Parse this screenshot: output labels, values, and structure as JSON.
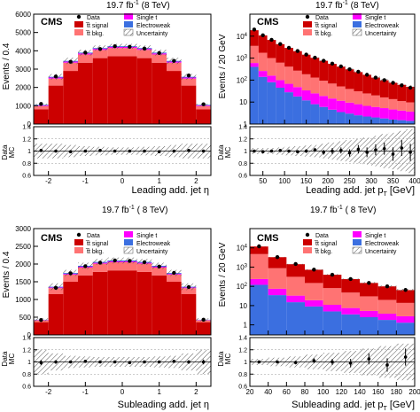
{
  "panels": [
    {
      "lumi_text": "19.7 fb",
      "lumi_sup": "-1",
      "energy_text": "(8 TeV)",
      "cms_label": "CMS",
      "ylabel": "Events / 0.4",
      "ratio_ylabel_top": "Data",
      "ratio_ylabel_bottom": "MC",
      "xlabel": "Leading add. jet η",
      "legend": [
        "Data",
        "t̅t signal",
        "t̅t bkg.",
        "Single t",
        "Electroweak",
        "Uncertainty"
      ]
    },
    {
      "lumi_text": "19.7 fb",
      "lumi_sup": "-1",
      "energy_text": "(8 TeV)",
      "cms_label": "CMS",
      "ylabel": "Events / 20 GeV",
      "ratio_ylabel_top": "Data",
      "ratio_ylabel_bottom": "MC",
      "xlabel": "Leading add. jet p",
      "xlabel_sub": "T",
      "xlabel_unit": "[GeV]",
      "legend": [
        "Data",
        "t̅t signal",
        "t̅t bkg.",
        "Single t",
        "Electroweak",
        "Uncertainty"
      ]
    },
    {
      "lumi_text": "19.7 fb",
      "lumi_sup": "-1",
      "energy_text": "( 8 TeV)",
      "cms_label": "CMS",
      "ylabel": "Events / 0.4",
      "ratio_ylabel_top": "Data",
      "ratio_ylabel_bottom": "MC",
      "xlabel": "Subleading add. jet η",
      "legend": [
        "Data",
        "t̅t signal",
        "t̅t bkg.",
        "Single t",
        "Electroweak",
        "Uncertainty"
      ]
    },
    {
      "lumi_text": "19.7 fb",
      "lumi_sup": "-1",
      "energy_text": "( 8 TeV)",
      "cms_label": "CMS",
      "ylabel": "Events / 20 GeV",
      "ratio_ylabel_top": "Data",
      "ratio_ylabel_bottom": "MC",
      "xlabel": "Subleading add. jet p",
      "xlabel_sub": "T",
      "xlabel_unit": "[GeV]",
      "legend": [
        "Data",
        "t̅t signal",
        "t̅t bkg.",
        "Single t",
        "Electroweak",
        "Uncertainty"
      ]
    }
  ],
  "colors": {
    "signal": "#cc0000",
    "bkg": "#ff7373",
    "single_t": "#ff00ff",
    "electroweak": "#3b6fe0",
    "data": "#000000",
    "uncertainty": "#444444"
  },
  "chart_data": [
    {
      "type": "bar",
      "stacked": true,
      "yscale": "linear",
      "x_bin_edges": [
        -2.4,
        -2.0,
        -1.6,
        -1.2,
        -0.8,
        -0.4,
        0.0,
        0.4,
        0.8,
        1.2,
        1.6,
        2.0,
        2.4
      ],
      "xlim": [
        -2.4,
        2.4
      ],
      "xticks": [
        -2,
        -1,
        0,
        1,
        2
      ],
      "ylim": [
        0,
        6000
      ],
      "yticks": [
        0,
        1000,
        2000,
        3000,
        4000,
        5000,
        6000
      ],
      "series": [
        {
          "name": "t̅t signal",
          "values": [
            800,
            2100,
            2900,
            3350,
            3600,
            3700,
            3700,
            3600,
            3350,
            2900,
            2100,
            800
          ]
        },
        {
          "name": "t̅t bkg.",
          "values": [
            180,
            380,
            450,
            450,
            450,
            450,
            450,
            450,
            450,
            450,
            380,
            180
          ]
        },
        {
          "name": "Single t",
          "values": [
            40,
            60,
            60,
            60,
            60,
            60,
            60,
            60,
            60,
            60,
            60,
            40
          ]
        },
        {
          "name": "Electroweak",
          "values": [
            30,
            40,
            40,
            40,
            40,
            40,
            40,
            40,
            40,
            40,
            40,
            30
          ]
        }
      ],
      "data": [
        1100,
        2600,
        3400,
        3900,
        4100,
        4250,
        4220,
        4120,
        3880,
        3450,
        2650,
        1080
      ],
      "ratio": {
        "values": [
          1.01,
          1.0,
          0.99,
          1.0,
          1.01,
          1.0,
          1.0,
          1.0,
          0.99,
          1.0,
          1.01,
          1.0
        ],
        "errors": [
          0.02,
          0.02,
          0.02,
          0.02,
          0.02,
          0.02,
          0.02,
          0.02,
          0.02,
          0.02,
          0.02,
          0.02
        ],
        "band": [
          0.12,
          0.12,
          0.1,
          0.08,
          0.07,
          0.06,
          0.06,
          0.07,
          0.08,
          0.1,
          0.12,
          0.12
        ],
        "ylim": [
          0.6,
          1.4
        ],
        "yticks": [
          0.6,
          0.8,
          1,
          1.2,
          1.4
        ]
      }
    },
    {
      "type": "bar",
      "stacked": true,
      "yscale": "log",
      "x_bin_edges": [
        20,
        40,
        60,
        80,
        100,
        120,
        140,
        160,
        180,
        200,
        220,
        240,
        260,
        280,
        300,
        320,
        340,
        360,
        380,
        400
      ],
      "xlim": [
        20,
        400
      ],
      "xticks": [
        50,
        100,
        150,
        200,
        250,
        300,
        350,
        400
      ],
      "ylim": [
        1,
        100000
      ],
      "yticks": [
        1,
        10,
        100,
        1000,
        10000
      ],
      "series": [
        {
          "name": "Electroweak",
          "values": [
            400,
            140,
            80,
            45,
            28,
            18,
            12,
            8,
            6,
            4.5,
            3.5,
            3,
            2.5,
            2.2,
            2,
            1.8,
            1.6,
            1.5,
            1.4
          ]
        },
        {
          "name": "Single t",
          "values": [
            200,
            120,
            80,
            55,
            40,
            30,
            22,
            17,
            13,
            10,
            8,
            6.5,
            5.5,
            4.5,
            4,
            3.5,
            3,
            2.6,
            2.3
          ]
        },
        {
          "name": "t̅t bkg.",
          "values": [
            3000,
            1500,
            850,
            520,
            340,
            220,
            150,
            105,
            75,
            55,
            40,
            30,
            23,
            18,
            14,
            11,
            9,
            7,
            6
          ]
        },
        {
          "name": "t̅t signal",
          "values": [
            15000,
            9000,
            5700,
            3700,
            2500,
            1800,
            1250,
            900,
            660,
            480,
            360,
            270,
            200,
            150,
            110,
            82,
            62,
            50,
            40
          ]
        }
      ],
      "data": [
        20000,
        11000,
        6800,
        4400,
        2950,
        2100,
        1450,
        1050,
        760,
        560,
        420,
        310,
        240,
        175,
        130,
        100,
        75,
        58,
        45
      ],
      "ratio": {
        "values": [
          1.0,
          0.99,
          1.0,
          1.01,
          1.0,
          0.99,
          1.0,
          1.02,
          0.98,
          1.0,
          1.01,
          0.97,
          1.03,
          0.98,
          1.02,
          1.04,
          0.95,
          1.05,
          0.98
        ],
        "errors": [
          0.01,
          0.01,
          0.01,
          0.02,
          0.02,
          0.02,
          0.03,
          0.03,
          0.04,
          0.05,
          0.05,
          0.06,
          0.07,
          0.08,
          0.09,
          0.1,
          0.11,
          0.13,
          0.14
        ],
        "band": [
          0.05,
          0.05,
          0.05,
          0.06,
          0.07,
          0.08,
          0.09,
          0.1,
          0.12,
          0.14,
          0.16,
          0.18,
          0.2,
          0.22,
          0.25,
          0.28,
          0.3,
          0.33,
          0.36
        ],
        "ylim": [
          0.6,
          1.4
        ],
        "yticks": [
          0.6,
          0.8,
          1,
          1.2,
          1.4
        ]
      }
    },
    {
      "type": "bar",
      "stacked": true,
      "yscale": "linear",
      "x_bin_edges": [
        -2.4,
        -2.0,
        -1.6,
        -1.2,
        -0.8,
        -0.4,
        0.0,
        0.4,
        0.8,
        1.2,
        1.6,
        2.0,
        2.4
      ],
      "xlim": [
        -2.4,
        2.4
      ],
      "xticks": [
        -2,
        -1,
        0,
        1,
        2
      ],
      "ylim": [
        0,
        3000
      ],
      "yticks": [
        0,
        500,
        1000,
        1500,
        2000,
        2500,
        3000
      ],
      "series": [
        {
          "name": "t̅t signal",
          "values": [
            360,
            1150,
            1500,
            1680,
            1780,
            1820,
            1820,
            1780,
            1680,
            1500,
            1150,
            360
          ]
        },
        {
          "name": "t̅t bkg.",
          "values": [
            50,
            170,
            200,
            220,
            230,
            230,
            230,
            230,
            220,
            200,
            170,
            50
          ]
        },
        {
          "name": "Single t",
          "values": [
            10,
            20,
            22,
            25,
            25,
            25,
            25,
            25,
            25,
            22,
            20,
            10
          ]
        },
        {
          "name": "Electroweak",
          "values": [
            8,
            20,
            25,
            25,
            25,
            25,
            25,
            25,
            25,
            25,
            20,
            8
          ]
        }
      ],
      "data": [
        420,
        1330,
        1740,
        1940,
        2040,
        2100,
        2090,
        2050,
        1930,
        1750,
        1350,
        430
      ],
      "ratio": {
        "values": [
          0.99,
          1.0,
          1.0,
          1.01,
          1.0,
          1.0,
          0.99,
          1.0,
          1.0,
          1.01,
          1.0,
          1.0
        ],
        "errors": [
          0.04,
          0.03,
          0.02,
          0.02,
          0.02,
          0.02,
          0.02,
          0.02,
          0.02,
          0.02,
          0.03,
          0.04
        ],
        "band": [
          0.2,
          0.14,
          0.1,
          0.09,
          0.08,
          0.08,
          0.08,
          0.08,
          0.09,
          0.1,
          0.14,
          0.2
        ],
        "ylim": [
          0.6,
          1.4
        ],
        "yticks": [
          0.6,
          0.8,
          1,
          1.2,
          1.4
        ]
      }
    },
    {
      "type": "bar",
      "stacked": true,
      "yscale": "log",
      "x_bin_edges": [
        20,
        40,
        60,
        80,
        100,
        120,
        140,
        160,
        180,
        200
      ],
      "xlim": [
        20,
        200
      ],
      "xticks": [
        20,
        40,
        60,
        80,
        100,
        120,
        140,
        160,
        180,
        200
      ],
      "ylim": [
        0.3,
        100000
      ],
      "yticks": [
        1,
        10,
        100,
        1000,
        10000
      ],
      "series": [
        {
          "name": "Electroweak",
          "values": [
            120,
            35,
            15,
            9,
            5,
            3.5,
            2.5,
            1.8,
            1.3
          ]
        },
        {
          "name": "Single t",
          "values": [
            120,
            40,
            18,
            10,
            6,
            4,
            2.8,
            2,
            1.5
          ]
        },
        {
          "name": "t̅t bkg.",
          "values": [
            4500,
            800,
            280,
            130,
            70,
            40,
            25,
            16,
            11
          ]
        },
        {
          "name": "t̅t signal",
          "values": [
            7000,
            2400,
            1100,
            580,
            320,
            190,
            120,
            80,
            50
          ]
        }
      ],
      "data": [
        12000,
        3300,
        1450,
        740,
        400,
        240,
        150,
        100,
        65
      ],
      "ratio": {
        "values": [
          1.0,
          1.0,
          0.99,
          1.02,
          1.0,
          0.98,
          1.05,
          0.95,
          1.08
        ],
        "errors": [
          0.01,
          0.02,
          0.03,
          0.04,
          0.05,
          0.07,
          0.09,
          0.11,
          0.14
        ],
        "band": [
          0.05,
          0.07,
          0.09,
          0.12,
          0.15,
          0.18,
          0.22,
          0.26,
          0.3
        ],
        "ylim": [
          0.6,
          1.4
        ],
        "yticks": [
          0.6,
          0.8,
          1,
          1.2,
          1.4
        ]
      }
    }
  ]
}
